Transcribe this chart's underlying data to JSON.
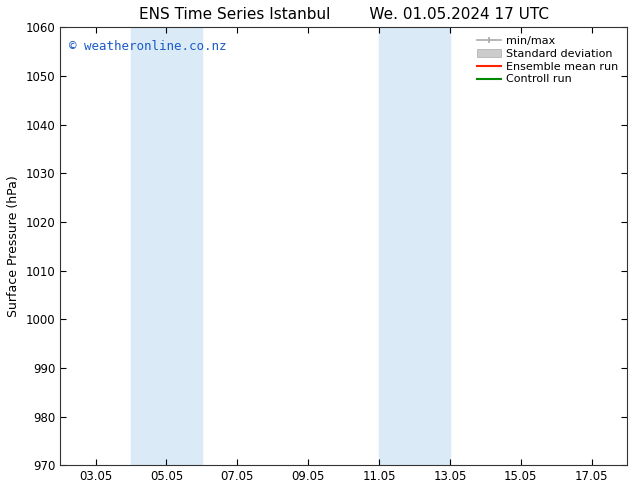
{
  "title_left": "ENS Time Series Istanbul",
  "title_right": "We. 01.05.2024 17 UTC",
  "ylabel": "Surface Pressure (hPa)",
  "ylim": [
    970,
    1060
  ],
  "yticks": [
    970,
    980,
    990,
    1000,
    1010,
    1020,
    1030,
    1040,
    1050,
    1060
  ],
  "xtick_labels": [
    "03.05",
    "05.05",
    "07.05",
    "09.05",
    "11.05",
    "13.05",
    "15.05",
    "17.05"
  ],
  "xtick_positions": [
    3,
    5,
    7,
    9,
    11,
    13,
    15,
    17
  ],
  "xlim": [
    2,
    18
  ],
  "shaded_bands": [
    {
      "xmin": 4.0,
      "xmax": 6.0
    },
    {
      "xmin": 11.0,
      "xmax": 13.0
    }
  ],
  "shaded_color": "#daeaf7",
  "background_color": "#ffffff",
  "watermark_text": "© weatheronline.co.nz",
  "watermark_color": "#1a5cc8",
  "legend_labels": [
    "min/max",
    "Standard deviation",
    "Ensemble mean run",
    "Controll run"
  ],
  "legend_colors": [
    "#aaaaaa",
    "#cccccc",
    "#ff2200",
    "#008800"
  ],
  "title_fontsize": 11,
  "axis_label_fontsize": 9,
  "tick_fontsize": 8.5,
  "watermark_fontsize": 9,
  "legend_fontsize": 8
}
